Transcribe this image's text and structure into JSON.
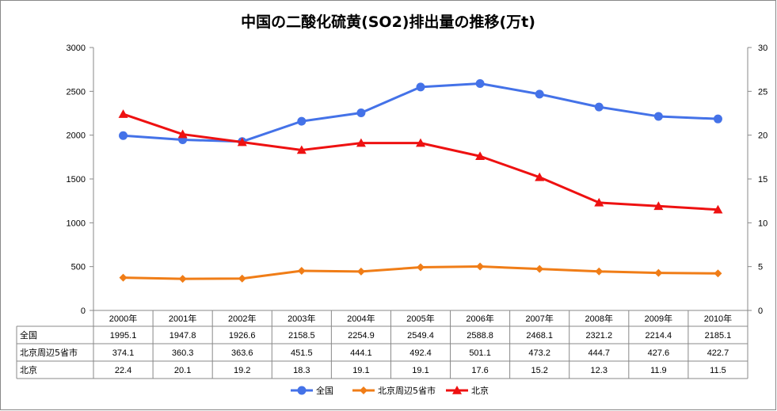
{
  "chart_data": {
    "type": "line",
    "title": "中国の二酸化硫黄(SO2)排出量の推移(万t)",
    "categories": [
      "2000年",
      "2001年",
      "2002年",
      "2003年",
      "2004年",
      "2005年",
      "2006年",
      "2007年",
      "2008年",
      "2009年",
      "2010年"
    ],
    "y_left": {
      "min": 0,
      "max": 3000,
      "step": 500,
      "ticks": [
        "0",
        "500",
        "1000",
        "1500",
        "2000",
        "2500",
        "3000"
      ]
    },
    "y_right": {
      "min": 0,
      "max": 30,
      "step": 5,
      "ticks": [
        "0",
        "5",
        "10",
        "15",
        "20",
        "25",
        "30"
      ]
    },
    "series": [
      {
        "name": "全国",
        "axis": "left",
        "color": "#4472e8",
        "marker": "circle",
        "values": [
          1995.1,
          1947.8,
          1926.6,
          2158.5,
          2254.9,
          2549.4,
          2588.8,
          2468.1,
          2321.2,
          2214.4,
          2185.1
        ],
        "labels": [
          "1995.1",
          "1947.8",
          "1926.6",
          "2158.5",
          "2254.9",
          "2549.4",
          "2588.8",
          "2468.1",
          "2321.2",
          "2214.4",
          "2185.1"
        ]
      },
      {
        "name": "北京周辺5省市",
        "axis": "left",
        "color": "#f07d17",
        "marker": "diamond",
        "values": [
          374.1,
          360.3,
          363.6,
          451.5,
          444.1,
          492.4,
          501.1,
          473.2,
          444.7,
          427.6,
          422.7
        ],
        "labels": [
          "374.1",
          "360.3",
          "363.6",
          "451.5",
          "444.1",
          "492.4",
          "501.1",
          "473.2",
          "444.7",
          "427.6",
          "422.7"
        ]
      },
      {
        "name": "北京",
        "axis": "right",
        "color": "#ee1111",
        "marker": "triangle",
        "values": [
          22.4,
          20.1,
          19.2,
          18.3,
          19.1,
          19.1,
          17.6,
          15.2,
          12.3,
          11.9,
          11.5
        ],
        "labels": [
          "22.4",
          "20.1",
          "19.2",
          "18.3",
          "19.1",
          "19.1",
          "17.6",
          "15.2",
          "12.3",
          "11.9",
          "11.5"
        ]
      }
    ],
    "legend_position": "bottom",
    "grid": false
  }
}
